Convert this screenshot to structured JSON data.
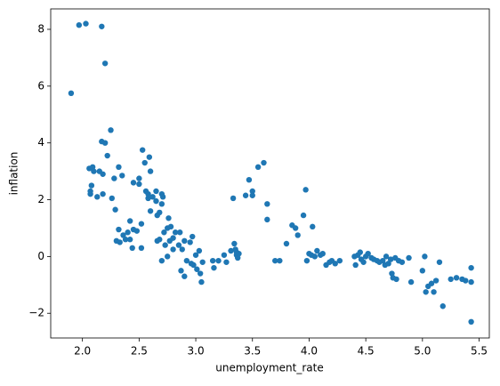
{
  "chart_data": {
    "type": "scatter",
    "xlabel": "unemployment_rate",
    "ylabel": "inflation",
    "color": "#1f77b4",
    "x": [
      1.9,
      1.97,
      2.03,
      2.17,
      2.2,
      2.06,
      2.07,
      2.07,
      2.09,
      2.1,
      2.08,
      2.13,
      2.15,
      2.17,
      2.18,
      2.2,
      2.18,
      2.22,
      2.25,
      2.26,
      2.28,
      2.29,
      2.3,
      2.32,
      2.33,
      2.32,
      2.35,
      2.36,
      2.38,
      2.4,
      2.42,
      2.42,
      2.45,
      2.44,
      2.45,
      2.48,
      2.5,
      2.5,
      2.52,
      2.52,
      2.53,
      2.55,
      2.56,
      2.58,
      2.58,
      2.59,
      2.6,
      2.6,
      2.62,
      2.65,
      2.65,
      2.66,
      2.66,
      2.68,
      2.68,
      2.7,
      2.7,
      2.71,
      2.72,
      2.7,
      2.73,
      2.75,
      2.75,
      2.76,
      2.77,
      2.78,
      2.8,
      2.8,
      2.82,
      2.85,
      2.86,
      2.87,
      2.88,
      2.9,
      2.9,
      2.92,
      2.95,
      2.96,
      2.97,
      2.98,
      3.0,
      3.01,
      3.03,
      3.04,
      3.05,
      3.06,
      3.15,
      3.16,
      3.2,
      3.25,
      3.27,
      3.31,
      3.33,
      3.34,
      3.35,
      3.36,
      3.37,
      3.38,
      3.36,
      3.44,
      3.47,
      3.5,
      3.5,
      3.55,
      3.6,
      3.63,
      3.63,
      3.7,
      3.74,
      3.8,
      3.85,
      3.88,
      3.9,
      3.95,
      3.97,
      3.98,
      4.0,
      4.02,
      4.03,
      4.05,
      4.07,
      4.1,
      4.12,
      4.15,
      4.18,
      4.2,
      4.23,
      4.27,
      4.4,
      4.41,
      4.43,
      4.45,
      4.46,
      4.48,
      4.5,
      4.52,
      4.55,
      4.57,
      4.6,
      4.62,
      4.65,
      4.67,
      4.68,
      4.7,
      4.72,
      4.73,
      4.74,
      4.76,
      4.77,
      4.79,
      4.82,
      4.88,
      4.9,
      5.0,
      5.02,
      5.03,
      5.05,
      5.08,
      5.1,
      5.12,
      5.15,
      5.18,
      5.25,
      5.3,
      5.35,
      5.38,
      5.43,
      5.43,
      5.43
    ],
    "values": [
      5.75,
      8.15,
      8.2,
      8.1,
      6.8,
      3.1,
      2.3,
      2.2,
      3.15,
      3.0,
      2.5,
      2.1,
      3.0,
      4.05,
      2.2,
      4.0,
      2.9,
      3.55,
      4.45,
      2.05,
      2.75,
      1.65,
      0.55,
      0.95,
      0.5,
      3.15,
      2.85,
      0.75,
      0.6,
      0.85,
      1.25,
      0.6,
      0.95,
      0.3,
      2.6,
      0.9,
      2.55,
      2.75,
      1.15,
      0.3,
      3.75,
      3.3,
      2.3,
      2.05,
      2.2,
      3.5,
      3.0,
      1.6,
      2.1,
      2.3,
      1.95,
      1.45,
      0.55,
      0.6,
      1.55,
      1.85,
      2.2,
      2.1,
      0.85,
      -0.15,
      0.4,
      1.0,
      0.0,
      1.35,
      0.55,
      1.05,
      0.65,
      0.25,
      0.85,
      0.4,
      0.85,
      -0.5,
      0.25,
      0.55,
      -0.7,
      -0.15,
      0.5,
      -0.25,
      0.7,
      -0.3,
      0.05,
      -0.45,
      0.2,
      -0.6,
      -0.9,
      -0.2,
      -0.15,
      -0.4,
      -0.15,
      0.05,
      -0.2,
      0.2,
      2.05,
      0.45,
      0.25,
      0.05,
      -0.05,
      0.1,
      0.15,
      2.15,
      2.7,
      2.3,
      2.15,
      3.15,
      3.3,
      1.85,
      1.3,
      -0.15,
      -0.15,
      0.45,
      1.1,
      1.0,
      0.75,
      1.45,
      2.35,
      -0.15,
      0.1,
      0.05,
      1.05,
      0.0,
      0.2,
      0.05,
      0.1,
      -0.3,
      -0.2,
      -0.15,
      -0.25,
      -0.15,
      0.0,
      -0.3,
      0.05,
      0.15,
      -0.1,
      -0.2,
      0.0,
      0.1,
      -0.05,
      -0.1,
      -0.15,
      -0.2,
      -0.15,
      -0.3,
      0.0,
      -0.25,
      -0.1,
      -0.6,
      -0.75,
      -0.05,
      -0.8,
      -0.15,
      -0.2,
      -0.05,
      -0.9,
      -0.5,
      0.0,
      -1.25,
      -1.05,
      -0.95,
      -1.25,
      -0.85,
      -0.2,
      -1.75,
      -0.8,
      -0.75,
      -0.8,
      -0.85,
      -0.9,
      -2.3,
      -0.4
    ],
    "xlim": [
      1.72,
      5.59
    ],
    "xticks": [
      {
        "value": 2,
        "label": "2.0"
      },
      2.5,
      {
        "value": 3,
        "label": "3.0"
      },
      3.5,
      {
        "value": 4,
        "label": "4.0"
      },
      4.5,
      {
        "value": 5,
        "label": "5.0"
      },
      5.5
    ],
    "ylim": [
      -2.87,
      8.72
    ],
    "yticks": [
      {
        "value": -2,
        "label": "−2"
      },
      0,
      2,
      4,
      6,
      8
    ]
  }
}
